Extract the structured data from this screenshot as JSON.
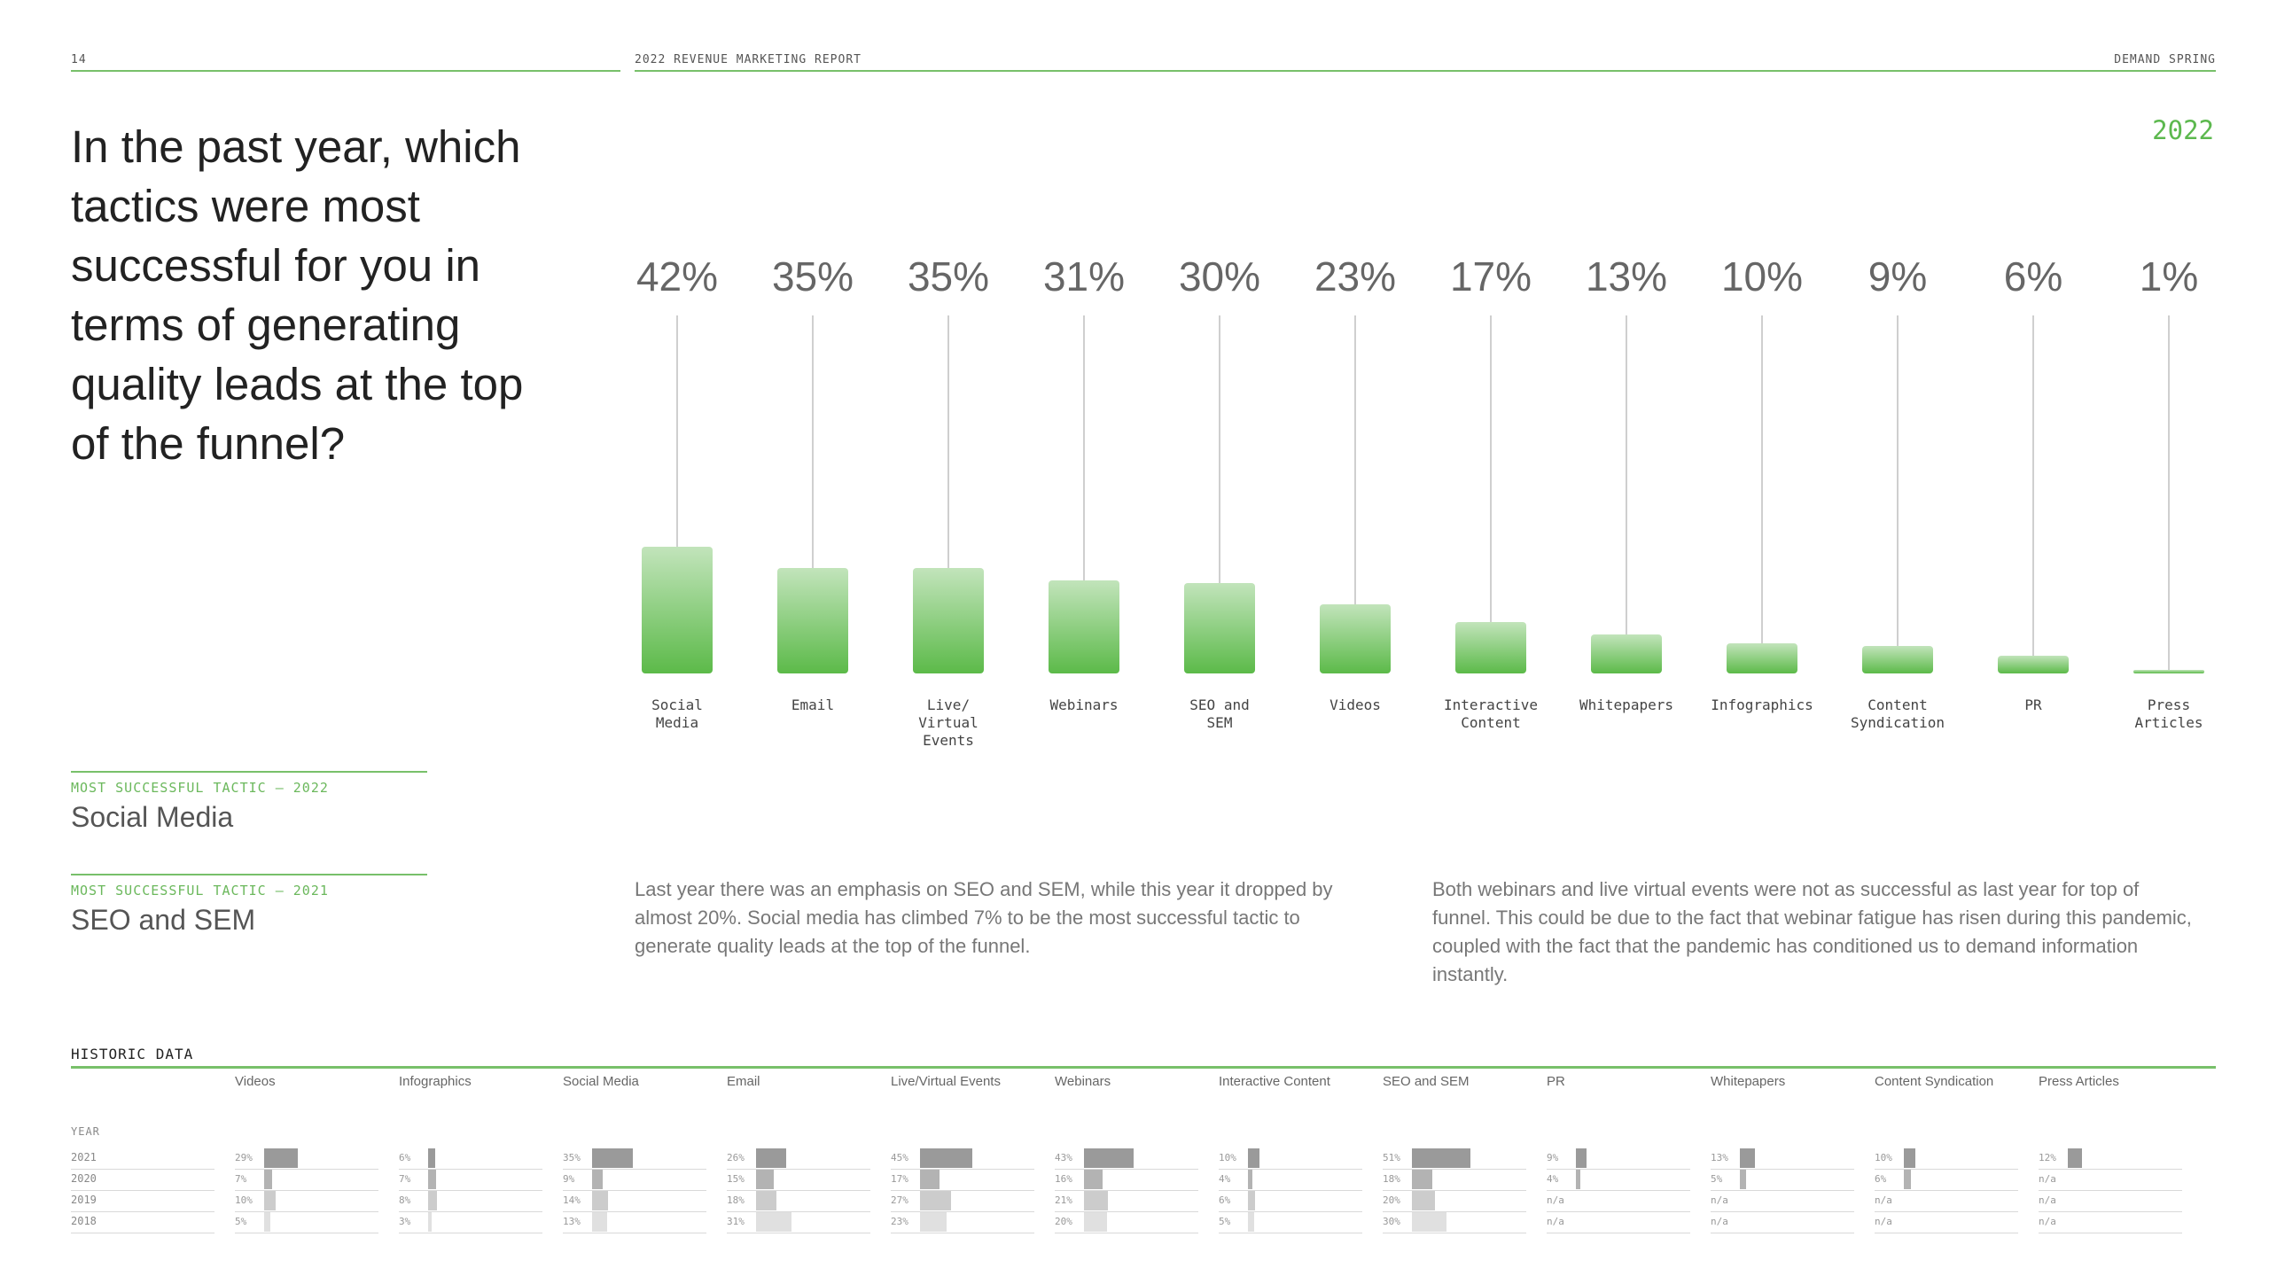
{
  "header": {
    "page_number": "14",
    "report_title": "2022 REVENUE MARKETING REPORT",
    "brand": "DEMAND SPRING"
  },
  "question": "In the past year, which tactics were most successful for you in terms of generating quality leads at the top of the funnel?",
  "year_tag": "2022",
  "colors": {
    "accent": "#78c06a",
    "bar_top": "#c2e4bb",
    "bar_bottom": "#5cba49",
    "hist_2021": "#9a9a9a",
    "hist_2020": "#b3b3b3",
    "hist_2019": "#cccccc",
    "hist_2018": "#e0e0e0"
  },
  "chart_data": [
    {
      "type": "bar",
      "categories": [
        "Social\nMedia",
        "Email",
        "Live/\nVirtual\nEvents",
        "Webinars",
        "SEO and\nSEM",
        "Videos",
        "Interactive\nContent",
        "Whitepapers",
        "Infographics",
        "Content\nSyndication",
        "PR",
        "Press\nArticles"
      ],
      "values": [
        42,
        35,
        35,
        31,
        30,
        23,
        17,
        13,
        10,
        9,
        6,
        1
      ],
      "value_labels": [
        "42%",
        "35%",
        "35%",
        "31%",
        "30%",
        "23%",
        "17%",
        "13%",
        "10%",
        "9%",
        "6%",
        "1%"
      ],
      "ylim": [
        0,
        100
      ],
      "grid": false
    },
    {
      "type": "bar",
      "categories": [
        "Videos",
        "Infographics",
        "Social Media",
        "Email",
        "Live/Virtual Events",
        "Webinars",
        "Interactive Content",
        "SEO and SEM",
        "PR",
        "Whitepapers",
        "Content Syndication",
        "Press Articles"
      ],
      "series": [
        {
          "name": "2021",
          "values": [
            29,
            6,
            35,
            26,
            45,
            43,
            10,
            51,
            9,
            13,
            10,
            12
          ],
          "labels": [
            "29%",
            "6%",
            "35%",
            "26%",
            "45%",
            "43%",
            "10%",
            "51%",
            "9%",
            "13%",
            "10%",
            "12%"
          ]
        },
        {
          "name": "2020",
          "values": [
            7,
            7,
            9,
            15,
            17,
            16,
            4,
            18,
            4,
            5,
            6,
            null
          ],
          "labels": [
            "7%",
            "7%",
            "9%",
            "15%",
            "17%",
            "16%",
            "4%",
            "18%",
            "4%",
            "5%",
            "6%",
            "n/a"
          ]
        },
        {
          "name": "2019",
          "values": [
            10,
            8,
            14,
            18,
            27,
            21,
            6,
            20,
            null,
            null,
            null,
            null
          ],
          "labels": [
            "10%",
            "8%",
            "14%",
            "18%",
            "27%",
            "21%",
            "6%",
            "20%",
            "n/a",
            "n/a",
            "n/a",
            "n/a"
          ]
        },
        {
          "name": "2018",
          "values": [
            5,
            3,
            13,
            31,
            23,
            20,
            5,
            30,
            null,
            null,
            null,
            null
          ],
          "labels": [
            "5%",
            "3%",
            "13%",
            "31%",
            "23%",
            "20%",
            "5%",
            "30%",
            "n/a",
            "n/a",
            "n/a",
            "n/a"
          ]
        }
      ],
      "ylim": [
        0,
        100
      ]
    }
  ],
  "tactics": [
    {
      "label": "MOST SUCCESSFUL TACTIC — 2022",
      "value": "Social Media"
    },
    {
      "label": "MOST SUCCESSFUL TACTIC — 2021",
      "value": "SEO and SEM"
    }
  ],
  "paragraphs": [
    "Last year there was an emphasis on SEO and SEM, while this year it dropped by almost 20%. Social media has climbed 7% to be the most successful tactic to generate quality leads at the top of the funnel.",
    "Both webinars and live virtual events were not as successful as last year for top of funnel. This could be due to the fact that webinar fatigue has risen during this pandemic, coupled with the fact that the pandemic has conditioned us to demand information instantly."
  ],
  "historic": {
    "title": "HISTORIC DATA",
    "year_label": "YEAR"
  }
}
